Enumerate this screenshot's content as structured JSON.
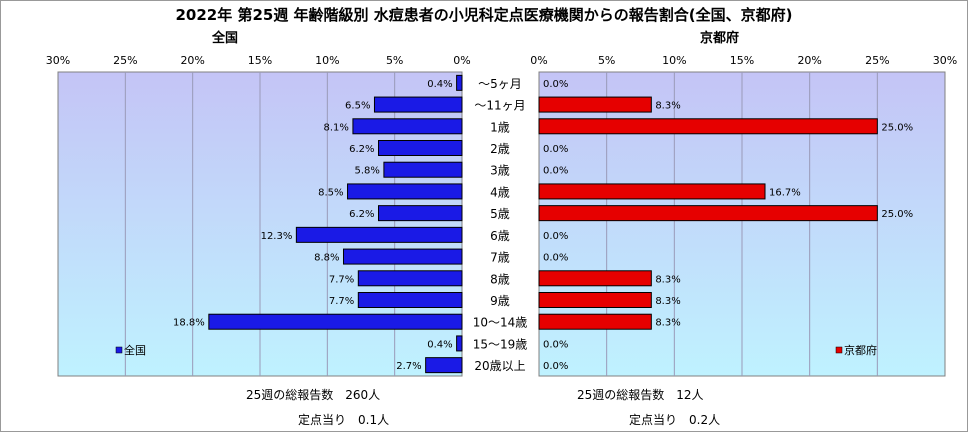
{
  "title": "2022年 第25週 年齢階級別 水痘患者の小児科定点医療機関からの報告割合(全国、京都府)",
  "colors": {
    "plot_bg_top": "#c4c4f6",
    "plot_bg_bottom": "#bff2ff",
    "left_bar": "#1a1ae6",
    "right_bar": "#e60000"
  },
  "chart_data": [
    {
      "type": "bar",
      "orientation": "horizontal",
      "direction": "reversed",
      "title": "全国",
      "xlim": [
        0,
        30
      ],
      "ticks": [
        "30%",
        "25%",
        "20%",
        "15%",
        "10%",
        "5%",
        "0%"
      ],
      "categories": [
        "～5ヶ月",
        "～11ヶ月",
        "1歳",
        "2歳",
        "3歳",
        "4歳",
        "5歳",
        "6歳",
        "7歳",
        "8歳",
        "9歳",
        "10～14歳",
        "15～19歳",
        "20歳以上"
      ],
      "series": [
        {
          "name": "全国",
          "values": [
            0.4,
            6.5,
            8.1,
            6.2,
            5.8,
            8.5,
            6.2,
            12.3,
            8.8,
            7.7,
            7.7,
            18.8,
            0.4,
            2.7
          ]
        }
      ],
      "legend_position": "bottom-left",
      "grid": true
    },
    {
      "type": "bar",
      "orientation": "horizontal",
      "title": "京都府",
      "xlim": [
        0,
        30
      ],
      "ticks": [
        "0%",
        "5%",
        "10%",
        "15%",
        "20%",
        "25%",
        "30%"
      ],
      "categories": [
        "～5ヶ月",
        "～11ヶ月",
        "1歳",
        "2歳",
        "3歳",
        "4歳",
        "5歳",
        "6歳",
        "7歳",
        "8歳",
        "9歳",
        "10～14歳",
        "15～19歳",
        "20歳以上"
      ],
      "series": [
        {
          "name": "京都府",
          "values": [
            0.0,
            8.3,
            25.0,
            0.0,
            0.0,
            16.7,
            25.0,
            0.0,
            0.0,
            8.3,
            8.3,
            8.3,
            0.0,
            0.0
          ]
        }
      ],
      "legend_position": "bottom-right",
      "grid": true
    }
  ],
  "footer": {
    "left_total": "25週の総報告数　260人",
    "left_per": "定点当り　0.1人",
    "right_total": "25週の総報告数　12人",
    "right_per": "定点当り　0.2人"
  }
}
